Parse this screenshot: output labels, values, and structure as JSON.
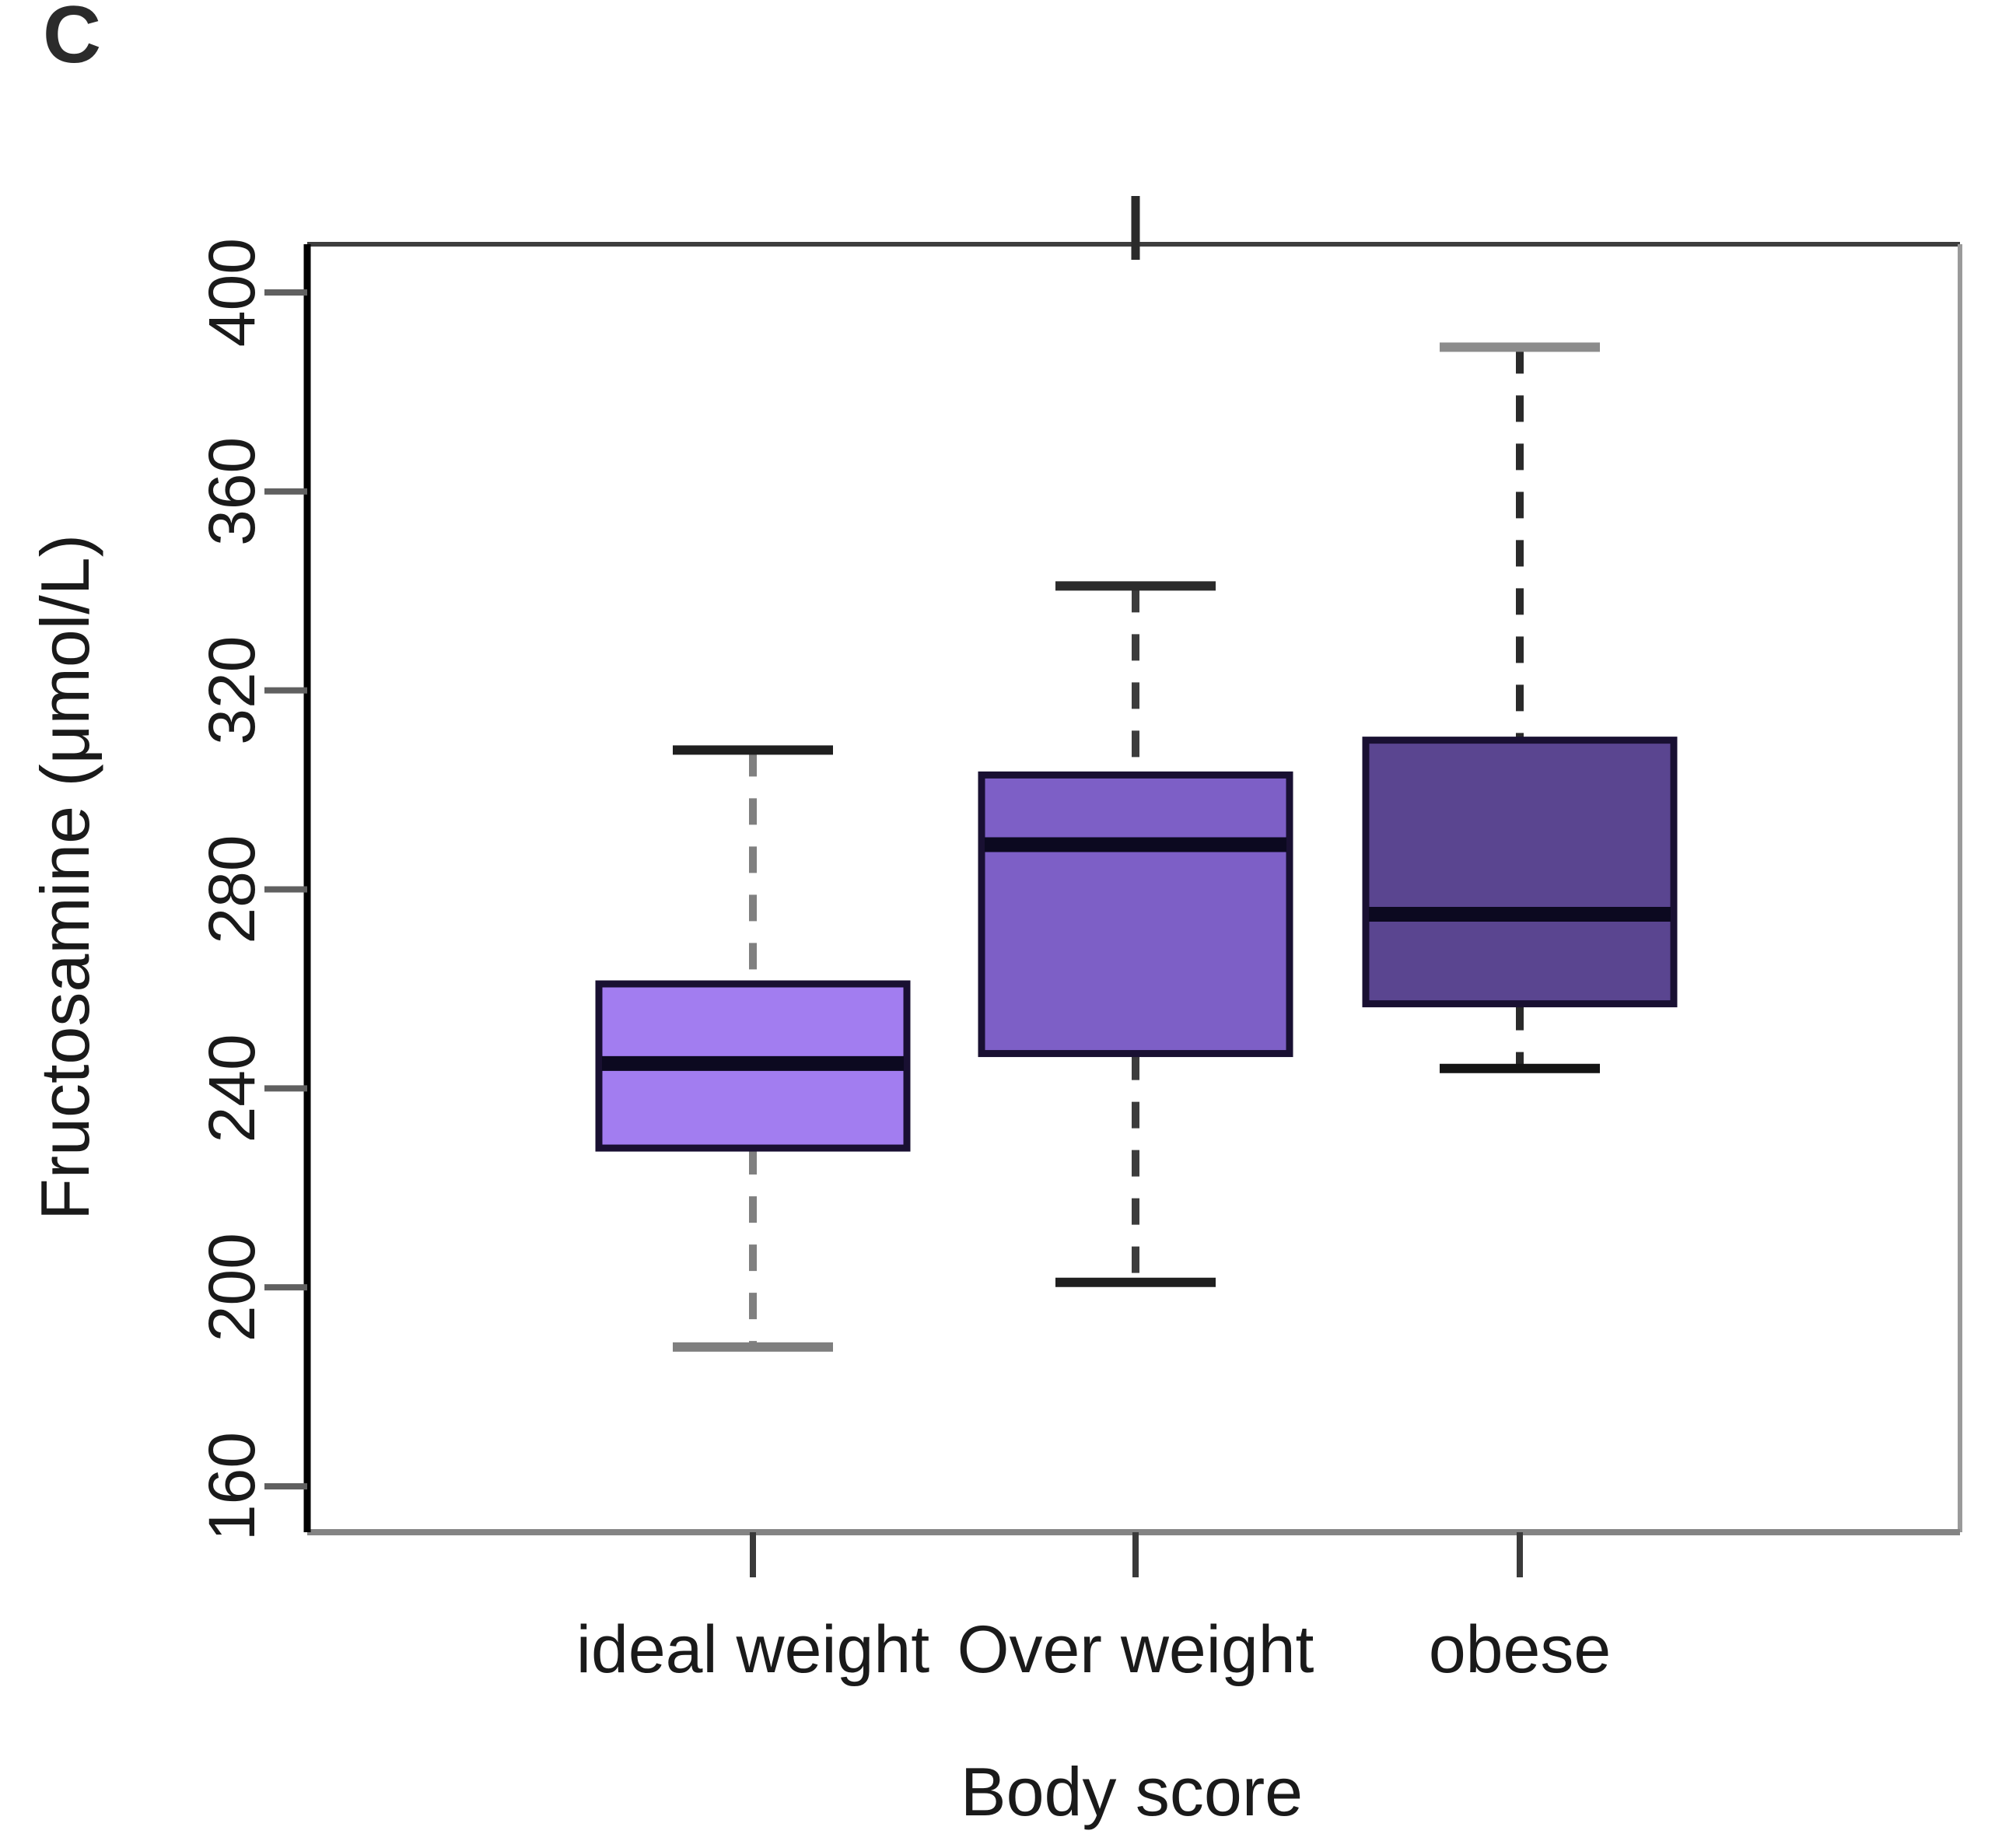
{
  "panel_label": "C",
  "axis_titles": {
    "y": "Fructosamine (μmol/L)",
    "x": "Body score"
  },
  "colors": {
    "box_border": "#191032",
    "median_line": "#0c0920",
    "axis_line": "#000000",
    "frame_top": "#3e3e3e",
    "frame_right": "#9a9a9a",
    "frame_bottom": "#848484",
    "tick": "#606060",
    "text": "#1a1a1a"
  },
  "chart_data": {
    "type": "boxplot",
    "title": "",
    "xlabel": "Body score",
    "ylabel": "Fructosamine (μmol/L)",
    "ylim": [
      151,
      410
    ],
    "yticks": [
      160,
      200,
      240,
      280,
      320,
      360,
      400
    ],
    "grid": "off",
    "legend": "none",
    "categories": [
      "ideal weight",
      "Over weight",
      "obese"
    ],
    "series": [
      {
        "category": "ideal weight",
        "whisker_low": 188,
        "q1": 228,
        "median": 245,
        "q3": 261,
        "whisker_high": 308,
        "fill": "#a27df0",
        "whisker_color": "#808080",
        "cap_top_color": "#1f1f1f",
        "cap_bottom_color": "#7f7f7f"
      },
      {
        "category": "Over weight",
        "whisker_low": 201,
        "q1": 247,
        "median": 289,
        "q3": 303,
        "whisker_high": 341,
        "fill": "#7d5fc6",
        "whisker_color": "#3c3c3c",
        "cap_top_color": "#2b2b2b",
        "cap_bottom_color": "#1f1f1f"
      },
      {
        "category": "obese",
        "whisker_low": 244,
        "q1": 257,
        "median": 275,
        "q3": 310,
        "whisker_high": 389,
        "fill": "#5a4590",
        "whisker_color": "#2a2a2a",
        "cap_top_color": "#8c8c8c",
        "cap_bottom_color": "#141414"
      }
    ],
    "annotations": [
      {
        "type": "clipped_whisker_stub",
        "category": "Over weight",
        "note": "short vertical stub crossing top frame above Over weight box"
      }
    ]
  }
}
